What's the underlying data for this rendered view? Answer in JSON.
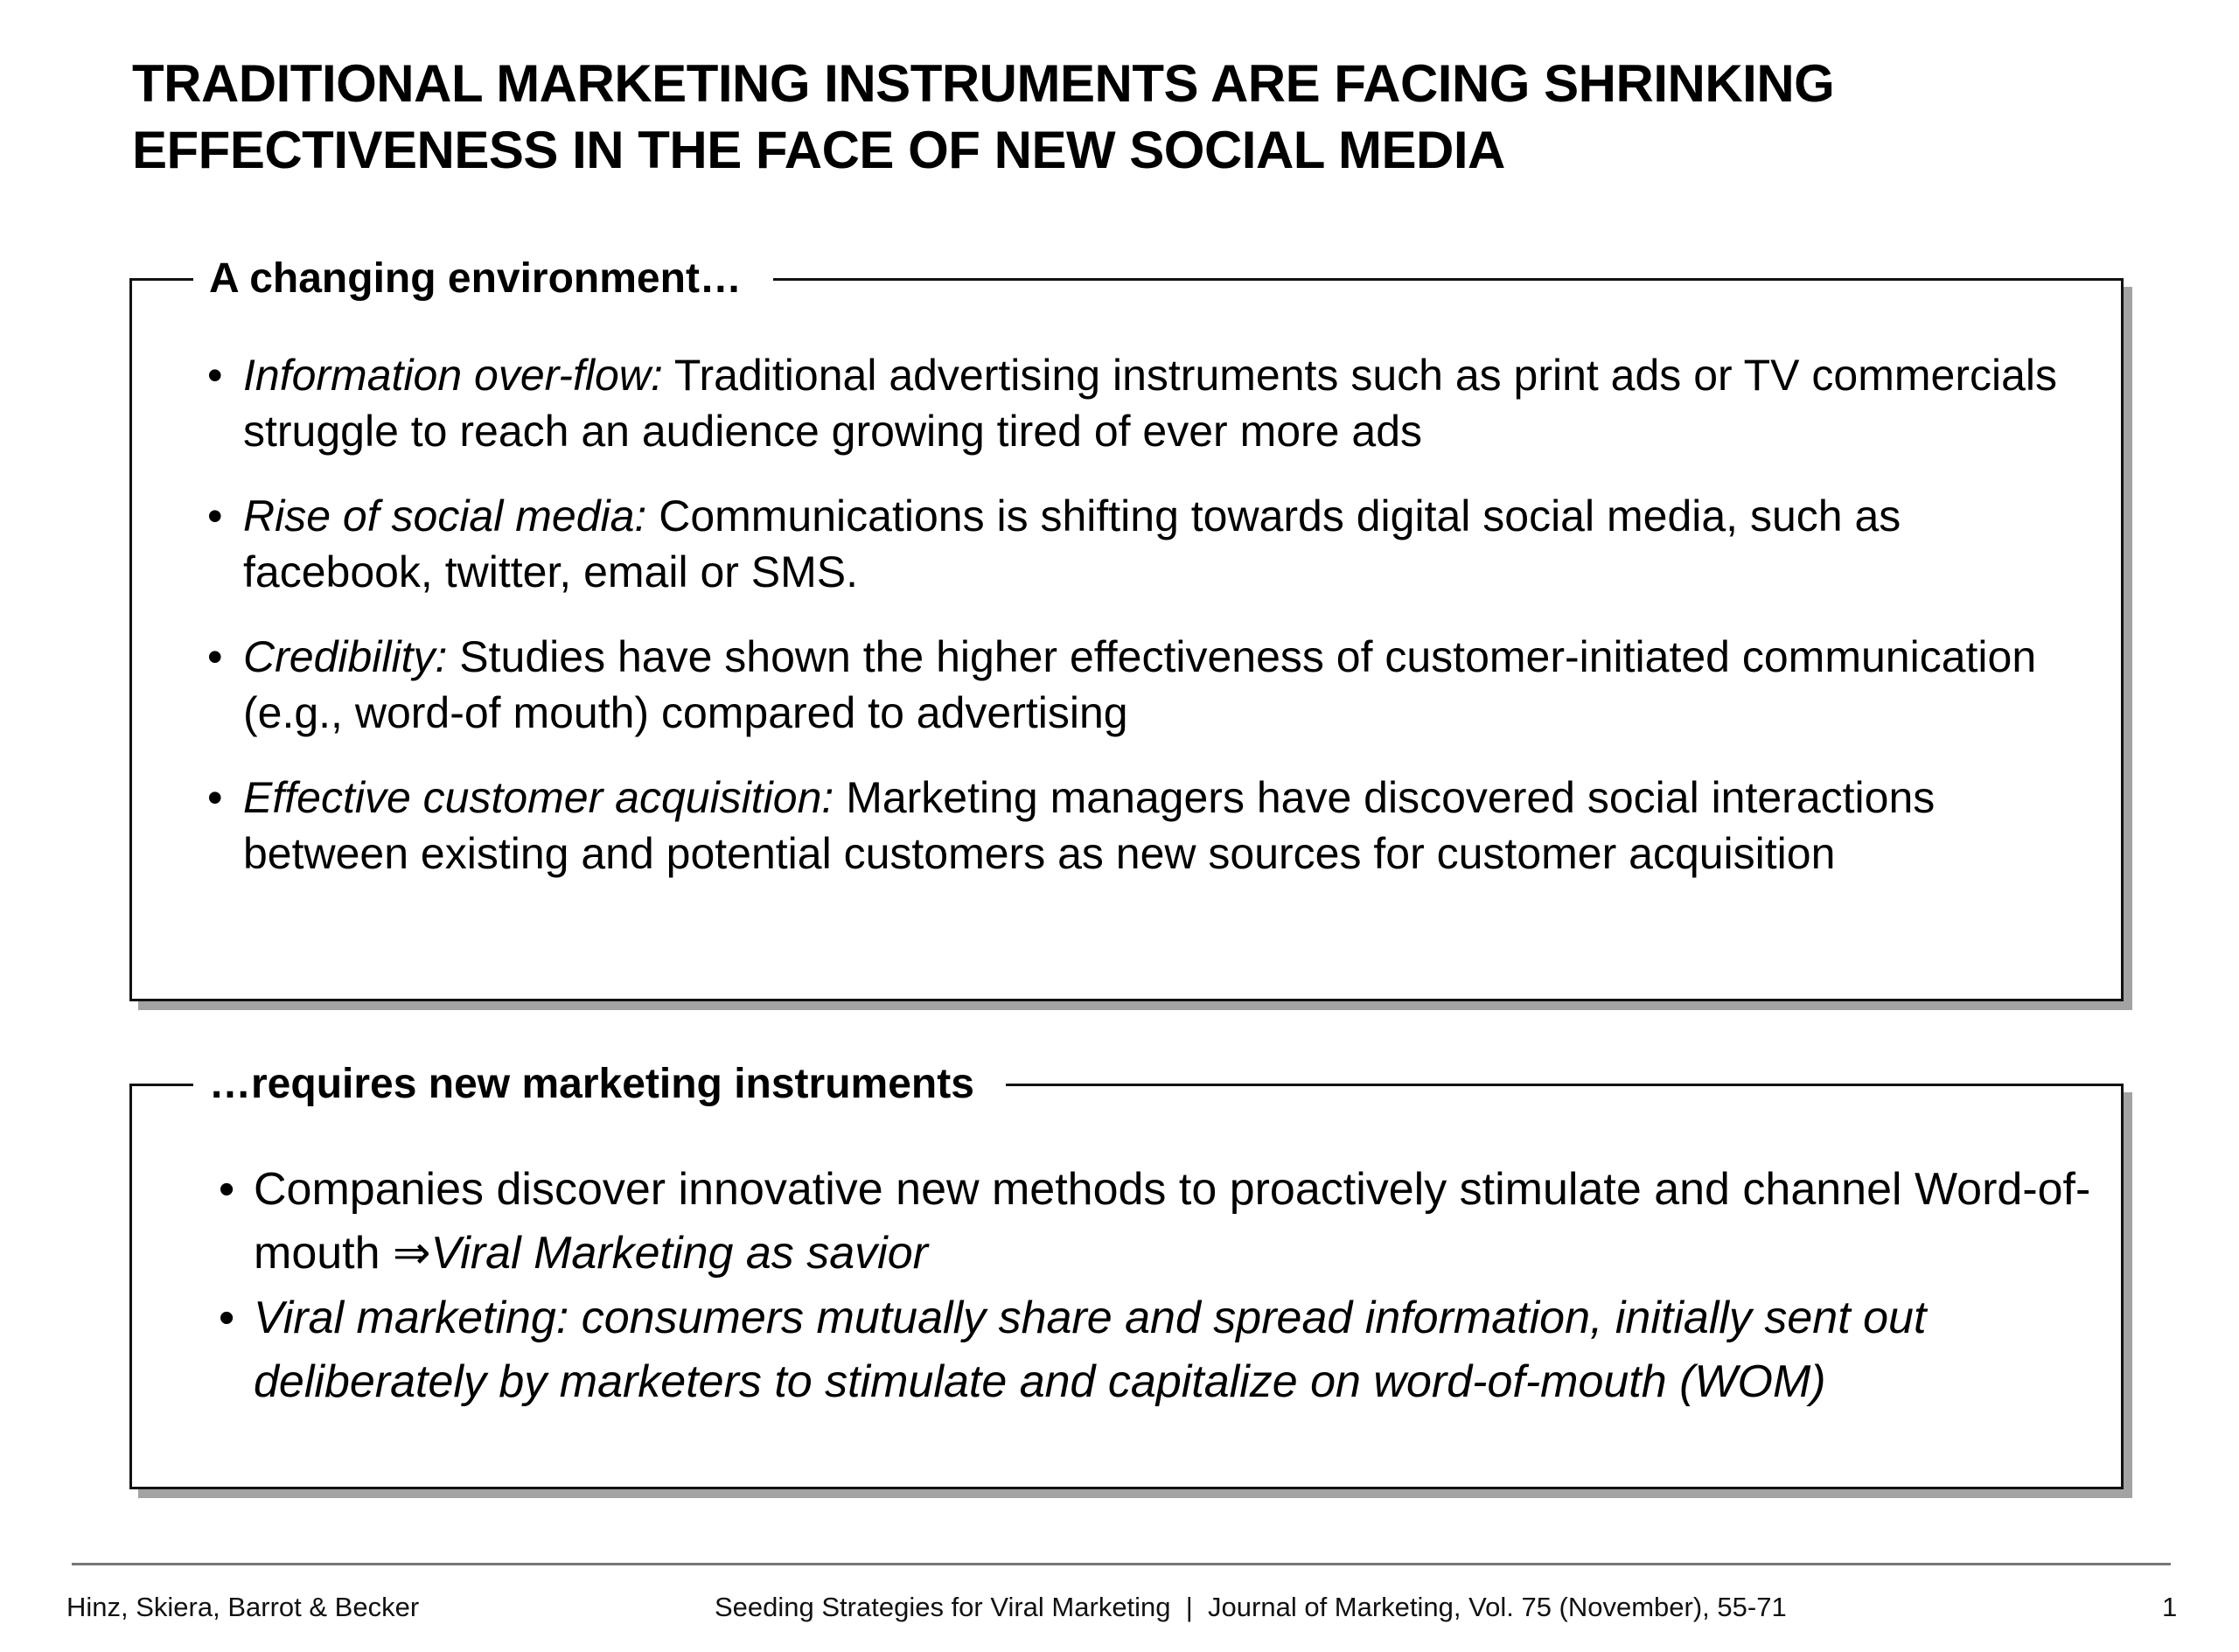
{
  "title": {
    "line1": "TRADITIONAL MARKETING INSTRUMENTS ARE FACING SHRINKING",
    "line2": "EFFECTIVENESS IN THE FACE OF NEW SOCIAL MEDIA"
  },
  "section1": {
    "heading": "A changing environment…",
    "bullets": [
      {
        "lead": "Information over-flow:",
        "text": " Traditional advertising instruments such as print ads or TV commercials struggle to reach an audience growing tired of ever more ads"
      },
      {
        "lead": "Rise of social media:",
        "text": " Communications is shifting towards digital social media, such as facebook, twitter, email or SMS."
      },
      {
        "lead": "Credibility:",
        "text": " Studies have shown the higher effectiveness of customer-initiated communication (e.g., word-of mouth) compared to advertising"
      },
      {
        "lead": "Effective customer acquisition:",
        "text": " Marketing managers have discovered social interactions between existing and potential customers as new sources for customer acquisition"
      }
    ]
  },
  "section2": {
    "heading": "…requires new marketing instruments",
    "bullets": [
      {
        "text": "Companies discover innovative new methods to proactively stimulate and channel Word-of-mouth ",
        "arrow": "⇒",
        "italic": "Viral Marketing as savior"
      },
      {
        "italic": "Viral marketing: consumers mutually share and spread information, initially sent out deliberately by marketers to stimulate and capitalize on word-of-mouth (WOM)"
      }
    ]
  },
  "footer": {
    "authors": "Hinz, Skiera, Barrot & Becker",
    "citation": "Seeding Strategies for Viral Marketing  |  Journal of Marketing, Vol. 75 (November), 55-71",
    "page": "1"
  },
  "bullet_char": "•"
}
